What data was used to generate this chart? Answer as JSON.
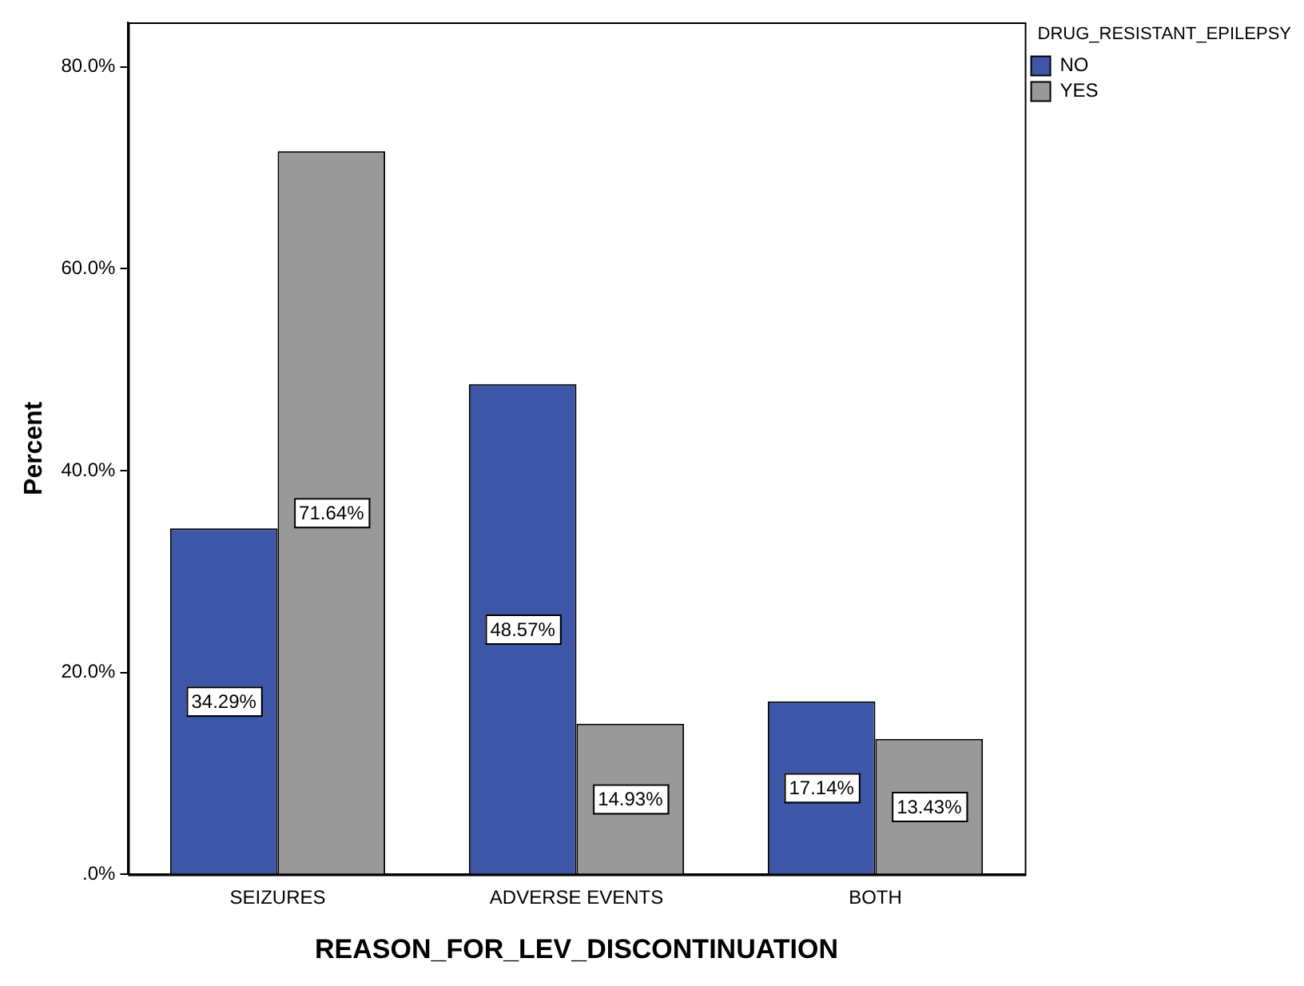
{
  "chart_data": {
    "type": "bar",
    "xlabel": "REASON_FOR_LEV_DISCONTINUATION",
    "ylabel": "Percent",
    "legend_title": "DRUG_RESISTANT_EPILEPSY",
    "legend": "top right",
    "categories": [
      "SEIZURES",
      "ADVERSE EVENTS",
      "BOTH"
    ],
    "series": [
      {
        "name": "NO",
        "color": "#3d56a8",
        "values": [
          34.29,
          48.57,
          17.14
        ],
        "value_labels": [
          "34.29%",
          "48.57%",
          "17.14%"
        ]
      },
      {
        "name": "YES",
        "color": "#999999",
        "values": [
          71.64,
          14.93,
          13.43
        ],
        "value_labels": [
          "71.64%",
          "14.93%",
          "13.43%"
        ]
      }
    ],
    "ylim": [
      0,
      84.4
    ],
    "yticks": [
      {
        "value": 0,
        "label": ".0%"
      },
      {
        "value": 20,
        "label": "20.0%"
      },
      {
        "value": 40,
        "label": "40.0%"
      },
      {
        "value": 60,
        "label": "60.0%"
      },
      {
        "value": 80,
        "label": "80.0%"
      }
    ],
    "grid": false
  }
}
